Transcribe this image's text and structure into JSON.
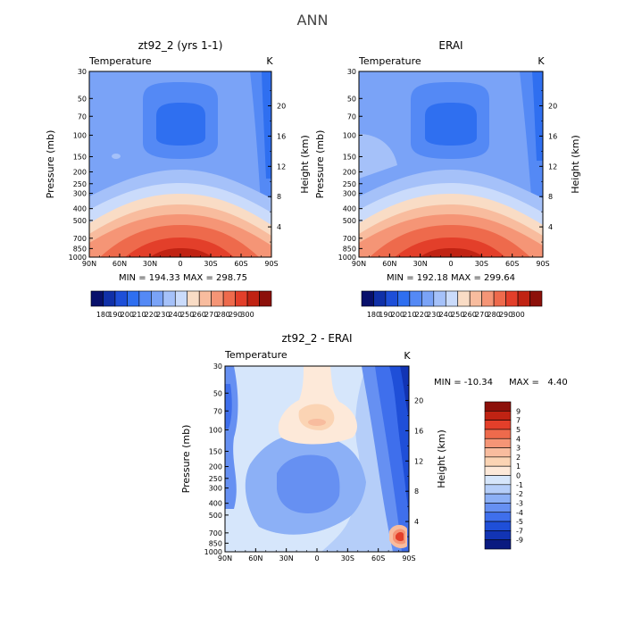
{
  "figure_title": "ANN",
  "chart_data": [
    {
      "type": "heatmap",
      "title": "zt92_2 (yrs 1-1)",
      "subtitle_left": "Temperature",
      "subtitle_right": "K",
      "ylabel": "Pressure (mb)",
      "ylabel_right": "Height (km)",
      "x_ticks": [
        "90N",
        "60N",
        "30N",
        "0",
        "30S",
        "60S",
        "90S"
      ],
      "y_ticks": [
        "30",
        "50",
        "70",
        "100",
        "150",
        "200",
        "250",
        "300",
        "400",
        "500",
        "700",
        "850",
        "1000"
      ],
      "y_right_ticks": [
        "20",
        "16",
        "12",
        "8",
        "4"
      ],
      "stats": "MIN = 194.33 MAX = 298.75",
      "min": 194.33,
      "max": 298.75,
      "colorbar_labels": [
        "180",
        "190",
        "200",
        "210",
        "220",
        "230",
        "240",
        "250",
        "260",
        "270",
        "280",
        "290",
        "300"
      ],
      "colorbar_colors": [
        "#08106b",
        "#1030a8",
        "#1e4fd8",
        "#2f6ff0",
        "#5489f5",
        "#7aa3f7",
        "#a5c1f9",
        "#cadbfb",
        "#f9dcc5",
        "#f8bc9e",
        "#f59576",
        "#ee6a4c",
        "#e33f2a",
        "#c02313",
        "#8c100a"
      ]
    },
    {
      "type": "heatmap",
      "title": "ERAI",
      "subtitle_left": "Temperature",
      "subtitle_right": "K",
      "ylabel": "Pressure (mb)",
      "ylabel_right": "Height (km)",
      "x_ticks": [
        "90N",
        "60N",
        "30N",
        "0",
        "30S",
        "60S",
        "90S"
      ],
      "y_ticks": [
        "30",
        "50",
        "70",
        "100",
        "150",
        "200",
        "250",
        "300",
        "400",
        "500",
        "700",
        "850",
        "1000"
      ],
      "y_right_ticks": [
        "20",
        "16",
        "12",
        "8",
        "4"
      ],
      "stats": "MIN = 192.18 MAX = 299.64",
      "min": 192.18,
      "max": 299.64,
      "colorbar_labels": [
        "180",
        "190",
        "200",
        "210",
        "220",
        "230",
        "240",
        "250",
        "260",
        "270",
        "280",
        "290",
        "300"
      ],
      "colorbar_colors": [
        "#08106b",
        "#1030a8",
        "#1e4fd8",
        "#2f6ff0",
        "#5489f5",
        "#7aa3f7",
        "#a5c1f9",
        "#cadbfb",
        "#f9dcc5",
        "#f8bc9e",
        "#f59576",
        "#ee6a4c",
        "#e33f2a",
        "#c02313",
        "#8c100a"
      ]
    },
    {
      "type": "heatmap",
      "title": "zt92_2 - ERAI",
      "subtitle_left": "Temperature",
      "subtitle_right": "K",
      "ylabel": "Pressure (mb)",
      "ylabel_right": "Height (km)",
      "x_ticks": [
        "90N",
        "60N",
        "30N",
        "0",
        "30S",
        "60S",
        "90S"
      ],
      "y_ticks": [
        "30",
        "50",
        "70",
        "100",
        "150",
        "200",
        "250",
        "300",
        "400",
        "500",
        "700",
        "850",
        "1000"
      ],
      "y_right_ticks": [
        "20",
        "16",
        "12",
        "8",
        "4"
      ],
      "stats_min": "MIN = -10.34",
      "stats_max": "MAX =   4.40",
      "min": -10.34,
      "max": 4.4,
      "colorbar_labels": [
        "9",
        "7",
        "5",
        "4",
        "3",
        "2",
        "1",
        "0",
        "-1",
        "-2",
        "-3",
        "-4",
        "-5",
        "-7",
        "-9"
      ],
      "colorbar_colors": [
        "#8c100a",
        "#c02313",
        "#e33f2a",
        "#ee6a4c",
        "#f59576",
        "#f8bc9e",
        "#fbd4b4",
        "#fde9d9",
        "#d6e6fb",
        "#b5cef9",
        "#8cb0f6",
        "#6690f2",
        "#3f6fec",
        "#1f4fd8",
        "#1234b4",
        "#0a1a80"
      ]
    }
  ]
}
